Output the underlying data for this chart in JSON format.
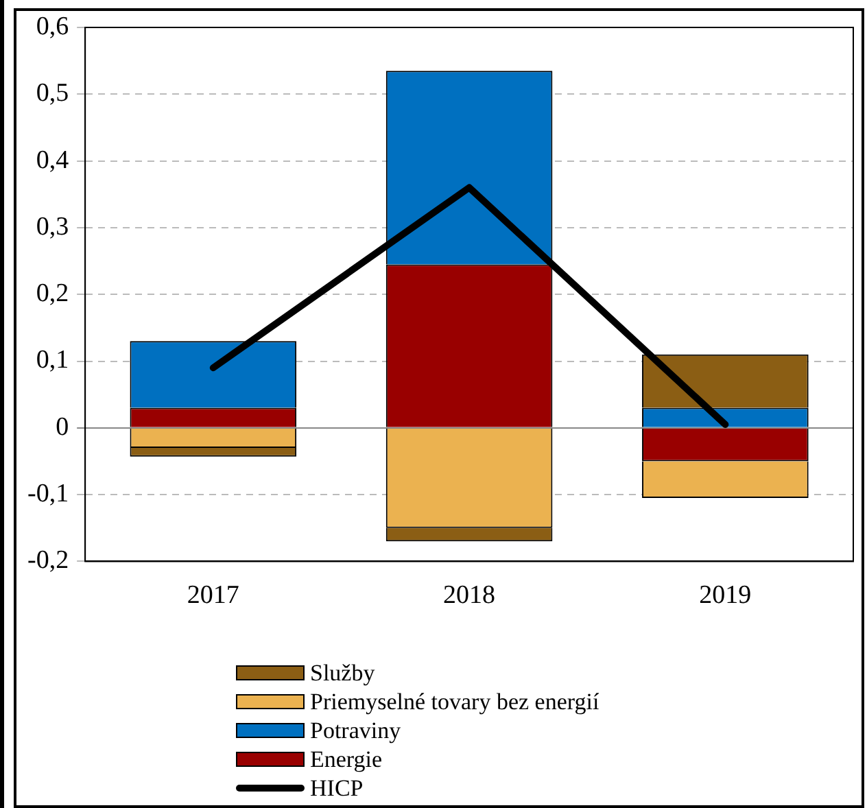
{
  "chart_data": {
    "type": "bar",
    "stacked": true,
    "categories": [
      "2017",
      "2018",
      "2019"
    ],
    "series": [
      {
        "name": "Energie",
        "color": "#990000",
        "values": [
          0.03,
          0.245,
          -0.05
        ]
      },
      {
        "name": "Potraviny",
        "color": "#0070c0",
        "values": [
          0.1,
          0.29,
          0.03
        ]
      },
      {
        "name": "Priemyselné tovary bez energií",
        "color": "#ebb250",
        "values": [
          -0.03,
          -0.15,
          -0.055
        ]
      },
      {
        "name": "Služby",
        "color": "#8b5e14",
        "values": [
          -0.013,
          -0.02,
          0.08
        ]
      },
      {
        "name": "HICP",
        "type": "line",
        "color": "#000000",
        "values": [
          0.09,
          0.36,
          0.005
        ]
      }
    ],
    "ylim": [
      -0.2,
      0.6
    ],
    "yticks": [
      {
        "value": -0.2,
        "label": "-0,2"
      },
      {
        "value": -0.1,
        "label": "-0,1"
      },
      {
        "value": 0,
        "label": "0"
      },
      {
        "value": 0.1,
        "label": "0,1"
      },
      {
        "value": 0.2,
        "label": "0,2"
      },
      {
        "value": 0.3,
        "label": "0,3"
      },
      {
        "value": 0.4,
        "label": "0,4"
      },
      {
        "value": 0.5,
        "label": "0,5"
      },
      {
        "value": 0.6,
        "label": "0,6"
      }
    ],
    "grid": "y",
    "legend": "bottom",
    "marker": "none",
    "line_style": "solid"
  }
}
